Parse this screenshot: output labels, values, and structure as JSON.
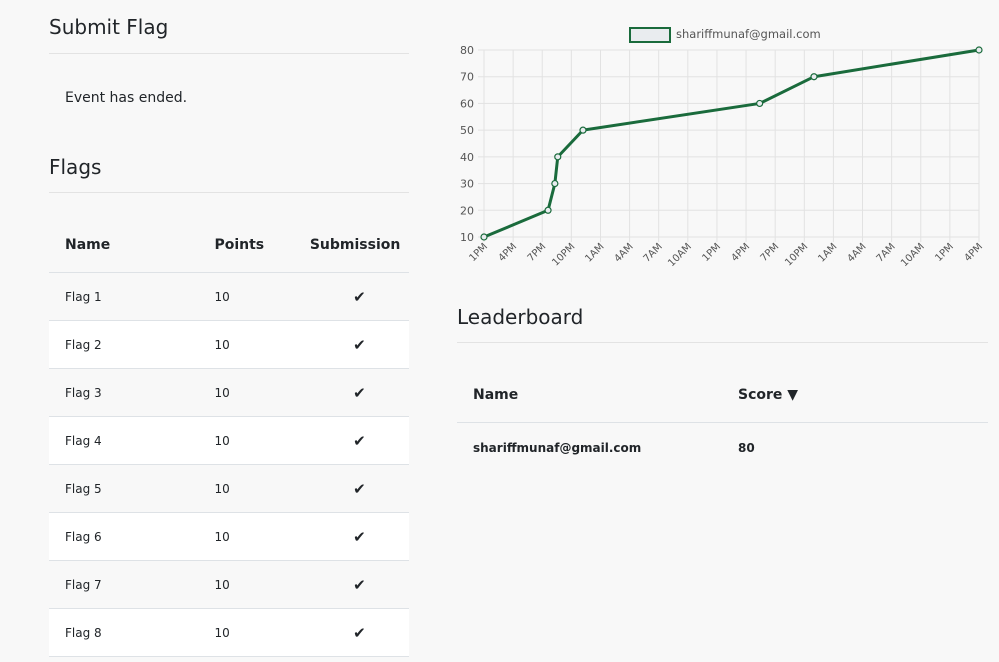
{
  "submit": {
    "title": "Submit Flag",
    "message": "Event has ended."
  },
  "flags": {
    "title": "Flags",
    "columns": [
      "Name",
      "Points",
      "Submission"
    ],
    "rows": [
      {
        "name": "Flag 1",
        "points": "10",
        "solved": true
      },
      {
        "name": "Flag 2",
        "points": "10",
        "solved": true
      },
      {
        "name": "Flag 3",
        "points": "10",
        "solved": true
      },
      {
        "name": "Flag 4",
        "points": "10",
        "solved": true
      },
      {
        "name": "Flag 5",
        "points": "10",
        "solved": true
      },
      {
        "name": "Flag 6",
        "points": "10",
        "solved": true
      },
      {
        "name": "Flag 7",
        "points": "10",
        "solved": true
      },
      {
        "name": "Flag 8",
        "points": "10",
        "solved": true
      }
    ],
    "check_icon": "check-icon"
  },
  "leaderboard": {
    "title": "Leaderboard",
    "columns": [
      "Name",
      "Score ▼"
    ],
    "rows": [
      {
        "name": "shariffmunaf@gmail.com",
        "score": "80"
      }
    ]
  },
  "colors": {
    "series": "#1a6b3c",
    "swatch_fill": "#e9ecef"
  },
  "chart_data": {
    "type": "line",
    "title": "",
    "xlabel": "",
    "ylabel": "",
    "ylim": [
      10,
      80
    ],
    "yticks": [
      10,
      20,
      30,
      40,
      50,
      60,
      70,
      80
    ],
    "xticks": [
      "1PM",
      "4PM",
      "7PM",
      "10PM",
      "1AM",
      "4AM",
      "7AM",
      "10AM",
      "1PM",
      "4PM",
      "7PM",
      "10PM",
      "1AM",
      "4AM",
      "7AM",
      "10AM",
      "1PM",
      "4PM"
    ],
    "grid": true,
    "legend": "top-center",
    "series": [
      {
        "name": "shariffmunaf@gmail.com",
        "x_hours": [
          0,
          6.6,
          7.3,
          7.6,
          10.2,
          28.4,
          34.0,
          51.0
        ],
        "values": [
          10,
          20,
          30,
          40,
          50,
          60,
          70,
          80
        ]
      }
    ]
  }
}
